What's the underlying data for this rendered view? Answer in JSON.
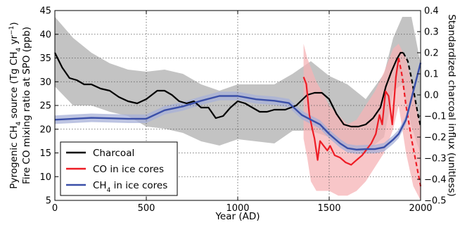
{
  "chart_data": {
    "type": "line",
    "x_label": "Year (AD)",
    "y_left_label_line1": "Pyrogenic CH₄ source (Tg CH₄ yr⁻¹)",
    "y_left_label_line2": "Fire CO mixing ratio at SPO (ppb)",
    "y_right_label": "Standardized charcoal influx (unitless)",
    "xlim": [
      0,
      2000
    ],
    "ylim_left": [
      5,
      45
    ],
    "ylim_right": [
      -0.5,
      0.4
    ],
    "x_ticks": [
      "0",
      "500",
      "1000",
      "1500",
      "2000"
    ],
    "y_left_ticks": [
      "5",
      "10",
      "15",
      "20",
      "25",
      "30",
      "35",
      "40",
      "45"
    ],
    "y_right_ticks": [
      "−0.5",
      "−0.4",
      "−0.3",
      "−0.2",
      "−0.1",
      "0.0",
      "0.1",
      "0.2",
      "0.3",
      "0.4"
    ],
    "grid": true,
    "legend_position": "bottom-left",
    "colors": {
      "charcoal": "#000000",
      "co": "#ee1c25",
      "ch4": "#3a4fa8",
      "charcoal_band": "#b8b8b8",
      "co_band": "#f6b3b6",
      "ch4_band": "#a7b0d8"
    },
    "legend": [
      {
        "label": "Charcoal",
        "key": "charcoal"
      },
      {
        "label": "CO in ice cores",
        "key": "co"
      },
      {
        "label_main": "CH",
        "label_sub": "4",
        "label_rest": " in ice cores",
        "key": "ch4"
      }
    ],
    "series": [
      {
        "name": "Charcoal",
        "axis": "right",
        "solid": [
          [
            0,
            0.2
          ],
          [
            40,
            0.13
          ],
          [
            80,
            0.08
          ],
          [
            120,
            0.07
          ],
          [
            160,
            0.05
          ],
          [
            200,
            0.05
          ],
          [
            250,
            0.03
          ],
          [
            300,
            0.02
          ],
          [
            350,
            -0.01
          ],
          [
            400,
            -0.03
          ],
          [
            450,
            -0.04
          ],
          [
            500,
            -0.02
          ],
          [
            530,
            0.0
          ],
          [
            560,
            0.02
          ],
          [
            600,
            0.02
          ],
          [
            640,
            0.0
          ],
          [
            680,
            -0.03
          ],
          [
            720,
            -0.04
          ],
          [
            760,
            -0.03
          ],
          [
            800,
            -0.06
          ],
          [
            840,
            -0.06
          ],
          [
            880,
            -0.11
          ],
          [
            920,
            -0.1
          ],
          [
            960,
            -0.06
          ],
          [
            1000,
            -0.03
          ],
          [
            1040,
            -0.04
          ],
          [
            1080,
            -0.06
          ],
          [
            1120,
            -0.08
          ],
          [
            1160,
            -0.08
          ],
          [
            1200,
            -0.07
          ],
          [
            1260,
            -0.07
          ],
          [
            1320,
            -0.05
          ],
          [
            1380,
            0.0
          ],
          [
            1420,
            0.01
          ],
          [
            1460,
            0.01
          ],
          [
            1500,
            -0.02
          ],
          [
            1540,
            -0.09
          ],
          [
            1580,
            -0.14
          ],
          [
            1620,
            -0.15
          ],
          [
            1660,
            -0.15
          ],
          [
            1700,
            -0.14
          ],
          [
            1740,
            -0.11
          ],
          [
            1780,
            -0.06
          ],
          [
            1810,
            0.04
          ],
          [
            1840,
            0.11
          ],
          [
            1870,
            0.17
          ],
          [
            1890,
            0.2
          ],
          [
            1905,
            0.2
          ]
        ],
        "dashed": [
          [
            1905,
            0.2
          ],
          [
            1930,
            0.16
          ],
          [
            1950,
            0.08
          ],
          [
            1970,
            -0.02
          ],
          [
            1985,
            -0.09
          ],
          [
            2000,
            -0.15
          ]
        ],
        "band": [
          [
            0,
            0.37,
            0.04
          ],
          [
            100,
            0.27,
            -0.05
          ],
          [
            200,
            0.2,
            -0.05
          ],
          [
            300,
            0.15,
            -0.08
          ],
          [
            400,
            0.12,
            -0.1
          ],
          [
            500,
            0.11,
            -0.15
          ],
          [
            600,
            0.12,
            -0.16
          ],
          [
            700,
            0.1,
            -0.18
          ],
          [
            800,
            0.05,
            -0.22
          ],
          [
            900,
            0.02,
            -0.24
          ],
          [
            1000,
            0.05,
            -0.21
          ],
          [
            1100,
            0.05,
            -0.22
          ],
          [
            1200,
            0.05,
            -0.23
          ],
          [
            1300,
            0.1,
            -0.17
          ],
          [
            1400,
            0.16,
            -0.17
          ],
          [
            1500,
            0.09,
            -0.2
          ],
          [
            1600,
            0.05,
            -0.25
          ],
          [
            1700,
            -0.02,
            -0.27
          ],
          [
            1800,
            0.1,
            -0.2
          ],
          [
            1850,
            0.27,
            0.02
          ],
          [
            1900,
            0.37,
            0.05
          ],
          [
            1950,
            0.37,
            -0.15
          ],
          [
            2000,
            0.15,
            -0.28
          ]
        ]
      },
      {
        "name": "CO in ice cores",
        "axis": "left",
        "solid": [
          [
            1360,
            31
          ],
          [
            1375,
            29.5
          ],
          [
            1392,
            23
          ],
          [
            1408,
            20
          ],
          [
            1420,
            18
          ],
          [
            1437,
            13.5
          ],
          [
            1450,
            17.5
          ],
          [
            1470,
            16.5
          ],
          [
            1490,
            15.5
          ],
          [
            1505,
            16.5
          ],
          [
            1530,
            14.5
          ],
          [
            1560,
            14
          ],
          [
            1590,
            13
          ],
          [
            1620,
            12.5
          ],
          [
            1650,
            13.5
          ],
          [
            1680,
            14.5
          ],
          [
            1710,
            16
          ],
          [
            1730,
            17
          ],
          [
            1755,
            19
          ],
          [
            1775,
            23
          ],
          [
            1790,
            21
          ],
          [
            1808,
            28
          ],
          [
            1825,
            27
          ],
          [
            1845,
            21
          ],
          [
            1865,
            31
          ],
          [
            1880,
            35
          ]
        ],
        "dashed": [
          [
            1880,
            35
          ],
          [
            1900,
            31
          ],
          [
            1920,
            25
          ],
          [
            1950,
            18
          ],
          [
            1980,
            12
          ],
          [
            2000,
            8
          ]
        ],
        "band": [
          [
            1360,
            38,
            18
          ],
          [
            1380,
            35,
            14
          ],
          [
            1400,
            33,
            9
          ],
          [
            1430,
            30,
            7
          ],
          [
            1460,
            28,
            7
          ],
          [
            1500,
            25,
            7
          ],
          [
            1550,
            23,
            6
          ],
          [
            1600,
            21,
            6
          ],
          [
            1650,
            22,
            7
          ],
          [
            1700,
            25,
            9
          ],
          [
            1750,
            28,
            12
          ],
          [
            1800,
            32,
            15
          ],
          [
            1850,
            37,
            20
          ],
          [
            1880,
            38,
            25
          ],
          [
            1920,
            35,
            15
          ],
          [
            1960,
            28,
            8
          ],
          [
            2000,
            20,
            5
          ]
        ]
      },
      {
        "name": "CH4 in ice cores",
        "axis": "left",
        "solid": [
          [
            0,
            22
          ],
          [
            100,
            22.2
          ],
          [
            200,
            22.4
          ],
          [
            300,
            22.3
          ],
          [
            400,
            22.2
          ],
          [
            500,
            22.2
          ],
          [
            600,
            24
          ],
          [
            700,
            24.8
          ],
          [
            800,
            26
          ],
          [
            900,
            27
          ],
          [
            1000,
            27
          ],
          [
            1100,
            26.3
          ],
          [
            1200,
            26
          ],
          [
            1280,
            25.5
          ],
          [
            1350,
            23
          ],
          [
            1400,
            22
          ],
          [
            1450,
            21
          ],
          [
            1500,
            19
          ],
          [
            1560,
            17
          ],
          [
            1600,
            16
          ],
          [
            1650,
            15.7
          ],
          [
            1700,
            15.8
          ],
          [
            1750,
            15.8
          ],
          [
            1800,
            16.2
          ],
          [
            1850,
            17.8
          ],
          [
            1880,
            19
          ],
          [
            1920,
            22
          ],
          [
            1960,
            28
          ],
          [
            2000,
            34
          ]
        ],
        "half_band": 0.9
      }
    ]
  }
}
